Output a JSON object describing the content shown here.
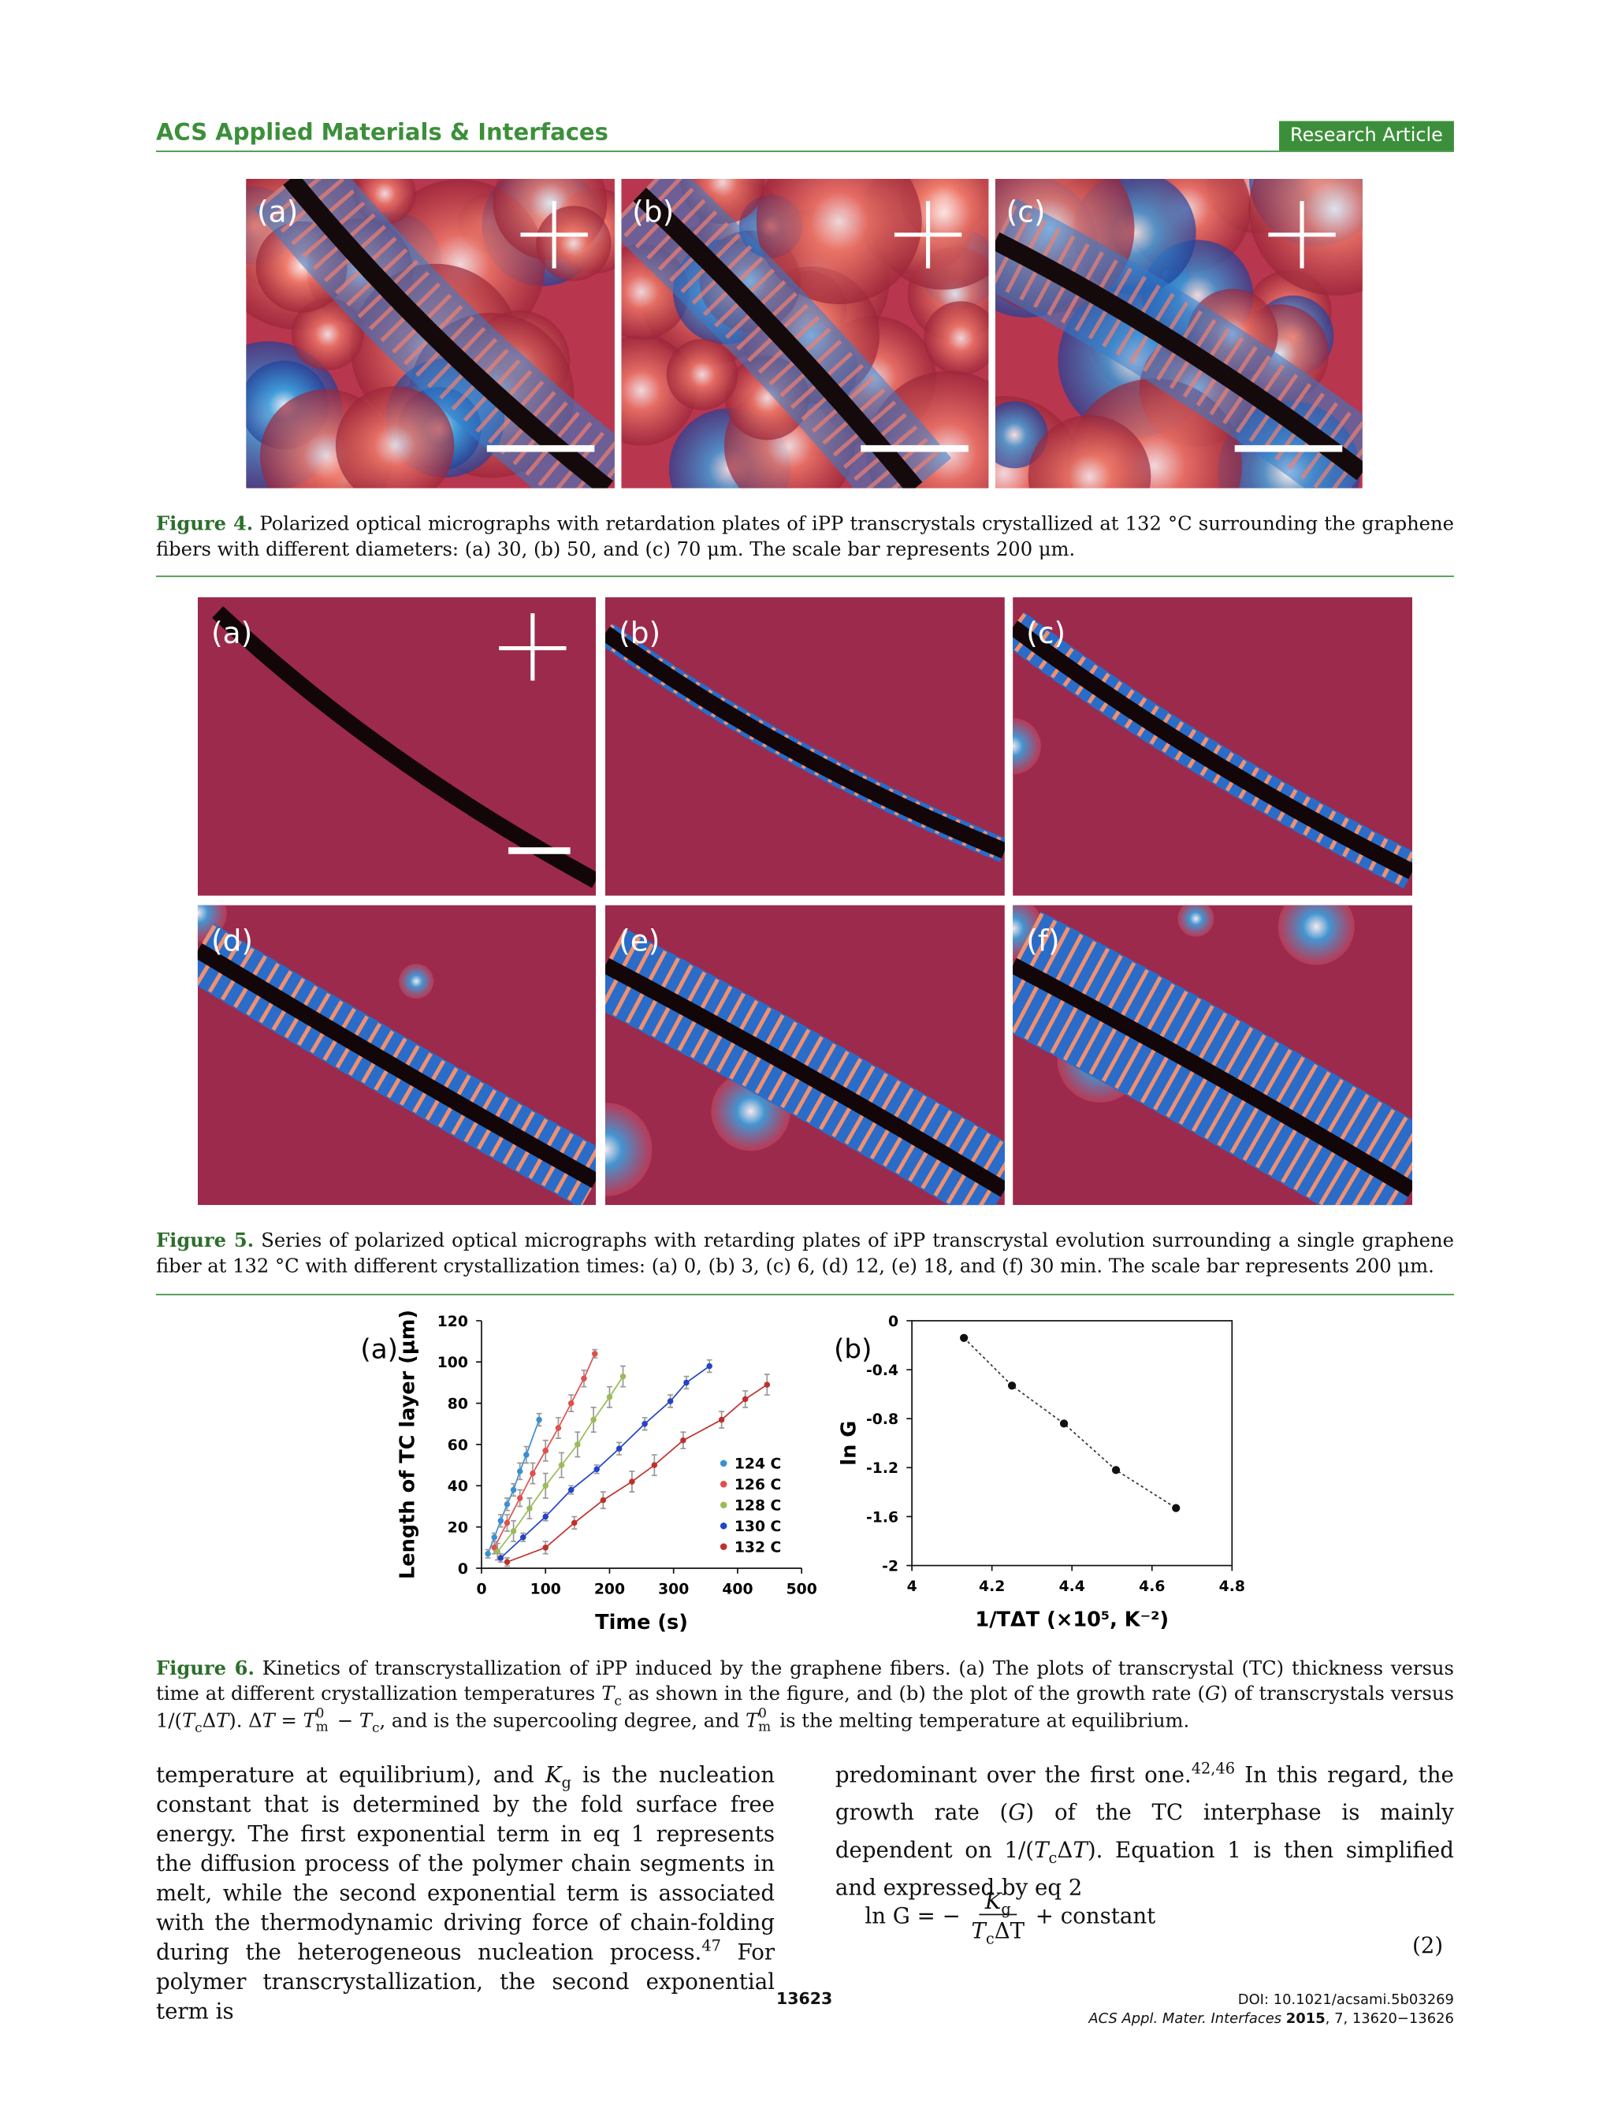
{
  "header": {
    "journal": "ACS Applied Materials & Interfaces",
    "section": "Research Article"
  },
  "figure4": {
    "panels": [
      "(a)",
      "(b)",
      "(c)"
    ],
    "label": "Figure 4.",
    "caption": "Polarized optical micrographs with retardation plates of iPP transcrystals crystallized at 132 °C surrounding the graphene fibers with different diameters: (a) 30, (b) 50, and (c) 70 μm. The scale bar represents 200 μm."
  },
  "figure5": {
    "panels": [
      "(a)",
      "(b)",
      "(c)",
      "(d)",
      "(e)",
      "(f)"
    ],
    "label": "Figure 5.",
    "caption": "Series of polarized optical micrographs with retarding plates of iPP transcrystal evolution surrounding a single graphene fiber at 132 °C with different crystallization times: (a) 0, (b) 3, (c) 6, (d) 12, (e) 18, and (f) 30 min. The scale bar represents 200 μm."
  },
  "figure6": {
    "label": "Figure 6.",
    "caption": [
      "Kinetics of transcrystallization of iPP induced by the graphene fibers. (a) The plots of transcrystal (TC) thickness versus time at different crystallization temperatures ",
      "T",
      "c",
      " as shown in the figure, and (b) the plot of the growth rate (",
      "G",
      ") of transcrystals versus 1/(",
      "T",
      "c",
      "Δ",
      "T",
      "). Δ",
      "T",
      " = ",
      "T",
      "0",
      "m",
      " − ",
      "T",
      "c",
      ", and is the supercooling degree, and ",
      "T",
      "0",
      "m",
      " is the melting temperature at equilibrium."
    ],
    "charts": [
      {
        "type": "line",
        "panel": "(a)",
        "xlabel": "Time (s)",
        "ylabel": "Length of TC layer (μm)",
        "xlim": [
          0,
          500
        ],
        "xticks": [
          0,
          100,
          200,
          300,
          400,
          500
        ],
        "ylim": [
          0,
          120
        ],
        "yticks": [
          0,
          20,
          40,
          60,
          80,
          100,
          120
        ],
        "legend": "lower right",
        "series": [
          {
            "name": "124 C",
            "color": "#3b8fd4",
            "x": [
              10,
              20,
              30,
              40,
              50,
              60,
              70,
              90
            ],
            "values": [
              7,
              15,
              23,
              31,
              38,
              47,
              55,
              72
            ],
            "errors": [
              2,
              2,
              3,
              3,
              3,
              4,
              4,
              3
            ]
          },
          {
            "name": "126 C",
            "color": "#e0504e",
            "x": [
              20,
              40,
              60,
              80,
              100,
              120,
              140,
              160,
              177
            ],
            "values": [
              10,
              22,
              34,
              46,
              57,
              68,
              80,
              92,
              104
            ],
            "errors": [
              3,
              4,
              4,
              5,
              5,
              5,
              4,
              4,
              2
            ]
          },
          {
            "name": "128 C",
            "color": "#9bbb59",
            "x": [
              25,
              50,
              75,
              100,
              125,
              150,
              175,
              200,
              221
            ],
            "values": [
              8,
              18,
              29,
              40,
              50,
              60,
              72,
              83,
              93
            ],
            "errors": [
              4,
              5,
              5,
              6,
              6,
              6,
              6,
              5,
              5
            ]
          },
          {
            "name": "130 C",
            "color": "#2343c8",
            "x": [
              30,
              65,
              100,
              140,
              180,
              215,
              255,
              295,
              320,
              356
            ],
            "values": [
              5,
              15,
              25,
              38,
              48,
              58,
              70,
              81,
              90,
              98
            ],
            "errors": [
              2,
              2,
              2,
              2,
              2,
              3,
              3,
              3,
              3,
              3
            ]
          },
          {
            "name": "132 C",
            "color": "#c0302c",
            "x": [
              40,
              100,
              145,
              190,
              235,
              270,
              315,
              375,
              412,
              446
            ],
            "values": [
              3,
              10,
              22,
              33,
              42,
              50,
              62,
              72,
              82,
              89
            ],
            "errors": [
              2,
              3,
              3,
              4,
              5,
              5,
              4,
              4,
              4,
              5
            ]
          }
        ]
      },
      {
        "type": "scatter",
        "panel": "(b)",
        "xlabel": "1/TΔT (×10⁵, K⁻²)",
        "ylabel": "ln G",
        "xlim": [
          4,
          4.8
        ],
        "xticks": [
          4,
          4.2,
          4.4,
          4.6,
          4.8
        ],
        "ylim": [
          -2,
          0
        ],
        "yticks": [
          0,
          -0.4,
          -0.8,
          -1.2,
          -1.6,
          -2
        ],
        "color": "#111111",
        "x": [
          4.13,
          4.25,
          4.38,
          4.51,
          4.66
        ],
        "values": [
          -0.14,
          -0.53,
          -0.84,
          -1.22,
          -1.53
        ]
      }
    ]
  },
  "body": {
    "left": [
      "temperature at equilibrium), and ",
      "K",
      "g",
      " is the nucleation constant that is determined by the fold surface free energy. The first exponential term in eq 1 represents the diffusion process of the polymer chain segments in melt, while the second exponential term is associated with the thermodynamic driving force of chain-folding during the heterogeneous nucleation process.",
      "47",
      " For polymer transcrystallization, the second exponential term is"
    ],
    "right": [
      "predominant over the first one.",
      "42,46",
      " In this regard, the growth rate (",
      "G",
      ") of the TC interphase is mainly dependent on 1/(",
      "T",
      "c",
      "Δ",
      "T",
      "). Equation 1 is then simplified and expressed by eq 2"
    ],
    "equation": {
      "lhs": "ln G = −",
      "numerator": [
        "K",
        "g"
      ],
      "denominator": [
        "T",
        "c",
        "ΔT"
      ],
      "rhs": "+ constant",
      "number": "(2)"
    }
  },
  "footer": {
    "page": "13623",
    "doi": "DOI: 10.1021/acsami.5b03269",
    "journal": "ACS Appl. Mater. Interfaces",
    "year": "2015",
    "volume": ", 7, 13620−13626"
  }
}
